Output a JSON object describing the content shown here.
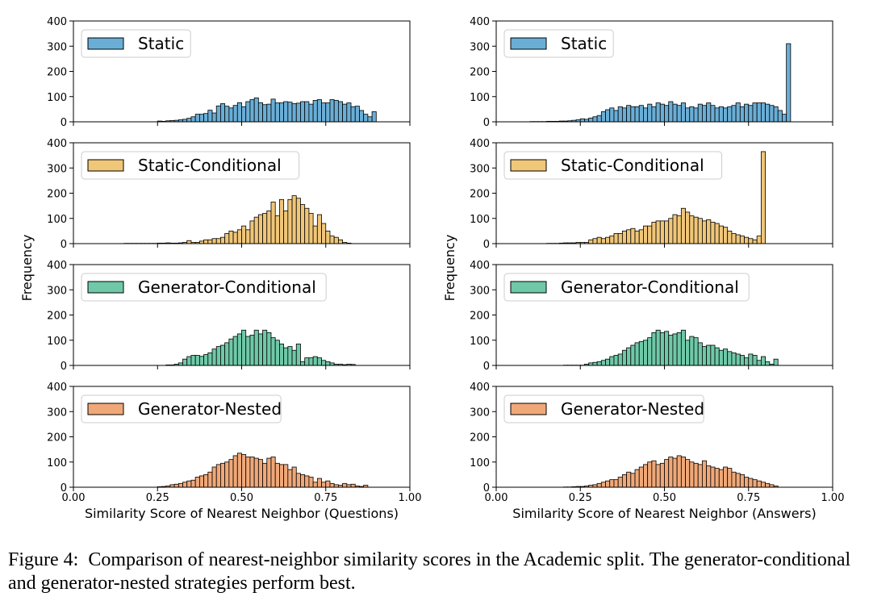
{
  "caption": {
    "label": "Figure 4:",
    "text": "Comparison of nearest-neighbor similarity scores in the Academic split. The generator-conditional and generator-nested strategies perform best."
  },
  "chart_data": [
    {
      "type": "bar",
      "title": "",
      "xlabel": "Similarity Score of Nearest Neighbor (Questions)",
      "ylabel": "Frequency",
      "xlim": [
        0,
        1
      ],
      "ylim": [
        0,
        400
      ],
      "xticks": [
        "0.00",
        "0.25",
        "0.50",
        "0.75",
        "1.00"
      ],
      "yticks": [
        "0",
        "100",
        "200",
        "300",
        "400"
      ],
      "bin_width": 0.0125,
      "legend_position": "upper-left",
      "panels": [
        {
          "name": "Static",
          "color": "#6aaed6",
          "bin_start": 0.25,
          "values": [
            3,
            2,
            4,
            5,
            6,
            8,
            10,
            14,
            20,
            30,
            30,
            33,
            46,
            35,
            63,
            72,
            62,
            55,
            65,
            76,
            60,
            80,
            88,
            95,
            76,
            68,
            70,
            90,
            75,
            75,
            80,
            78,
            72,
            74,
            80,
            80,
            70,
            85,
            88,
            75,
            75,
            88,
            85,
            80,
            70,
            75,
            60,
            62,
            45,
            30,
            20,
            40
          ]
        },
        {
          "name": "Static-Conditional",
          "color": "#f0c679",
          "bin_start": 0.15,
          "values": [
            1,
            1,
            1,
            1,
            1,
            1,
            1,
            1,
            2,
            2,
            3,
            2,
            2,
            3,
            5,
            12,
            5,
            5,
            10,
            15,
            15,
            20,
            20,
            25,
            40,
            50,
            45,
            55,
            70,
            55,
            90,
            105,
            115,
            120,
            130,
            165,
            110,
            175,
            130,
            175,
            190,
            180,
            155,
            140,
            120,
            70,
            115,
            80,
            50,
            30,
            25,
            15,
            5,
            2
          ]
        },
        {
          "name": "Generator-Conditional",
          "color": "#6fc9a8",
          "bin_start": 0.275,
          "values": [
            2,
            2,
            5,
            10,
            25,
            35,
            40,
            40,
            36,
            43,
            50,
            65,
            75,
            80,
            90,
            105,
            115,
            125,
            140,
            115,
            120,
            140,
            125,
            140,
            130,
            110,
            100,
            85,
            70,
            75,
            60,
            85,
            15,
            30,
            30,
            35,
            30,
            20,
            15,
            10,
            5,
            5,
            3,
            5,
            4
          ]
        },
        {
          "name": "Generator-Nested",
          "color": "#f0a878",
          "bin_start": 0.25,
          "values": [
            2,
            3,
            5,
            10,
            12,
            15,
            20,
            25,
            28,
            40,
            45,
            50,
            60,
            80,
            90,
            95,
            100,
            110,
            125,
            135,
            130,
            120,
            120,
            115,
            110,
            95,
            115,
            120,
            95,
            90,
            90,
            70,
            80,
            55,
            50,
            45,
            40,
            20,
            35,
            20,
            25,
            15,
            10,
            8,
            15,
            10,
            12,
            5,
            3,
            8
          ]
        }
      ]
    },
    {
      "type": "bar",
      "title": "",
      "xlabel": "Similarity Score of Nearest Neighbor (Answers)",
      "ylabel": "Frequency",
      "xlim": [
        0,
        1
      ],
      "ylim": [
        0,
        400
      ],
      "xticks": [
        "0.00",
        "0.25",
        "0.50",
        "0.75",
        "1.00"
      ],
      "yticks": [
        "0",
        "100",
        "200",
        "300",
        "400"
      ],
      "bin_width": 0.0125,
      "legend_position": "upper-left",
      "panels": [
        {
          "name": "Static",
          "color": "#6aaed6",
          "bin_start": 0.1,
          "values": [
            1,
            1,
            1,
            1,
            2,
            2,
            2,
            3,
            3,
            4,
            6,
            8,
            12,
            10,
            15,
            20,
            25,
            40,
            48,
            55,
            45,
            60,
            55,
            65,
            60,
            60,
            65,
            55,
            70,
            60,
            75,
            70,
            65,
            80,
            70,
            65,
            75,
            55,
            60,
            55,
            70,
            65,
            75,
            65,
            55,
            60,
            55,
            60,
            65,
            75,
            60,
            70,
            65,
            75,
            75,
            75,
            70,
            65,
            60,
            45,
            30,
            310
          ]
        },
        {
          "name": "Static-Conditional",
          "color": "#f0c679",
          "bin_start": 0.15,
          "values": [
            1,
            1,
            1,
            2,
            3,
            3,
            3,
            5,
            5,
            5,
            15,
            20,
            25,
            20,
            25,
            30,
            40,
            40,
            50,
            55,
            60,
            50,
            55,
            70,
            70,
            85,
            90,
            90,
            90,
            100,
            115,
            110,
            140,
            125,
            110,
            105,
            100,
            90,
            95,
            85,
            80,
            70,
            65,
            50,
            40,
            35,
            30,
            25,
            20,
            15,
            30,
            365
          ]
        },
        {
          "name": "Generator-Conditional",
          "color": "#6fc9a8",
          "bin_start": 0.2,
          "values": [
            1,
            1,
            1,
            1,
            1,
            5,
            10,
            12,
            15,
            20,
            25,
            35,
            40,
            45,
            60,
            70,
            80,
            90,
            95,
            100,
            110,
            130,
            140,
            130,
            135,
            120,
            125,
            130,
            140,
            100,
            115,
            110,
            90,
            75,
            80,
            80,
            70,
            60,
            65,
            55,
            50,
            45,
            40,
            30,
            45,
            40,
            20,
            35,
            15,
            5,
            25
          ]
        },
        {
          "name": "Generator-Nested",
          "color": "#f0a878",
          "bin_start": 0.2,
          "values": [
            1,
            1,
            2,
            3,
            3,
            5,
            8,
            10,
            15,
            20,
            25,
            30,
            30,
            40,
            50,
            60,
            55,
            70,
            80,
            90,
            100,
            105,
            90,
            95,
            110,
            120,
            115,
            125,
            120,
            110,
            100,
            95,
            90,
            105,
            85,
            80,
            75,
            70,
            80,
            75,
            60,
            55,
            50,
            40,
            35,
            30,
            25,
            20,
            15,
            10,
            5
          ]
        }
      ]
    }
  ]
}
